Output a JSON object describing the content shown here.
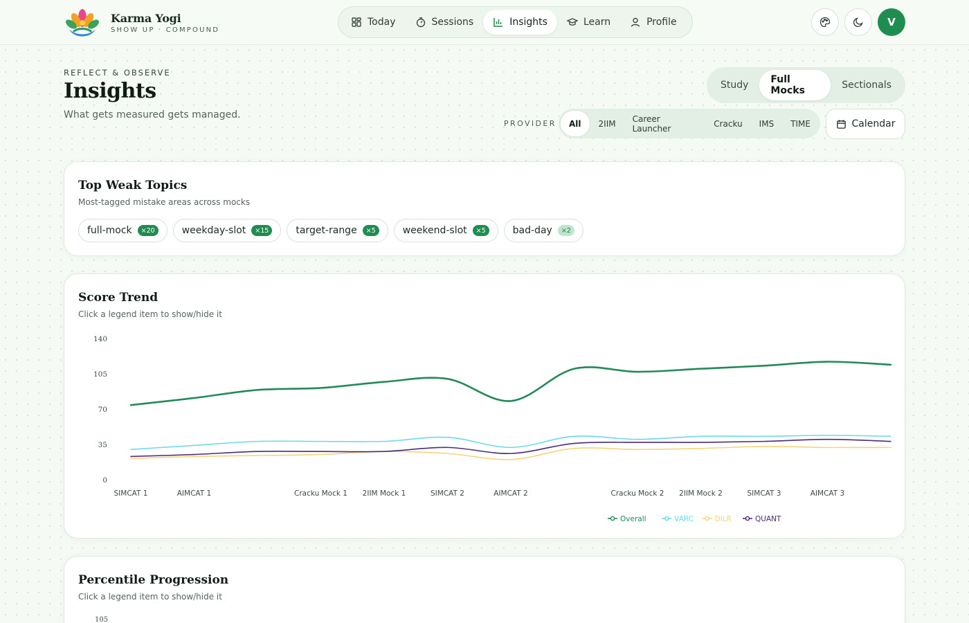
{
  "brand": {
    "name": "Karma Yogi",
    "tagline": "SHOW UP · COMPOUND"
  },
  "nav": {
    "items": [
      {
        "label": "Today",
        "icon": "grid-icon"
      },
      {
        "label": "Sessions",
        "icon": "timer-icon"
      },
      {
        "label": "Insights",
        "icon": "bar-chart-icon",
        "active": true
      },
      {
        "label": "Learn",
        "icon": "graduation-cap-icon"
      },
      {
        "label": "Profile",
        "icon": "user-icon"
      }
    ]
  },
  "header_actions": {
    "avatar_initial": "V"
  },
  "page": {
    "eyebrow": "REFLECT & OBSERVE",
    "title": "Insights",
    "subtitle": "What gets measured gets managed."
  },
  "mode_tabs": [
    {
      "label": "Study"
    },
    {
      "label": "Full Mocks",
      "active": true
    },
    {
      "label": "Sectionals"
    }
  ],
  "provider": {
    "label": "PROVIDER",
    "options": [
      {
        "label": "All",
        "active": true
      },
      {
        "label": "2IIM"
      },
      {
        "label": "Career Launcher"
      },
      {
        "label": "Cracku"
      },
      {
        "label": "IMS"
      },
      {
        "label": "TIME"
      }
    ]
  },
  "calendar_button": {
    "label": "Calendar"
  },
  "weak_topics": {
    "title": "Top Weak Topics",
    "subtitle": "Most-tagged mistake areas across mocks",
    "chips": [
      {
        "label": "full-mock",
        "count": "×20"
      },
      {
        "label": "weekday-slot",
        "count": "×15"
      },
      {
        "label": "target-range",
        "count": "×5"
      },
      {
        "label": "weekend-slot",
        "count": "×5"
      },
      {
        "label": "bad-day",
        "count": "×2",
        "muted": true
      }
    ]
  },
  "score_trend": {
    "title": "Score Trend",
    "subtitle": "Click a legend item to show/hide it"
  },
  "percentile": {
    "title": "Percentile Progression",
    "subtitle": "Click a legend item to show/hide it",
    "first_tick": "105"
  },
  "chart_data": {
    "type": "line",
    "ylim": [
      0,
      140
    ],
    "yticks": [
      0,
      35,
      70,
      105,
      140
    ],
    "x": [
      "SIMCAT 1",
      "AIMCAT 1",
      "",
      "Cracku Mock 1",
      "2IIM Mock 1",
      "SIMCAT 2",
      "AIMCAT 2",
      "",
      "Cracku Mock 2",
      "2IIM Mock 2",
      "SIMCAT 3",
      "AIMCAT 3",
      ""
    ],
    "series": [
      {
        "name": "Overall",
        "color": "#23895a",
        "values": [
          74,
          81,
          89,
          91,
          97,
          100,
          78,
          110,
          107,
          110,
          113,
          117,
          114
        ]
      },
      {
        "name": "VARC",
        "color": "#6ad9ec",
        "values": [
          30,
          34,
          38,
          38,
          38,
          42,
          32,
          43,
          40,
          43,
          43,
          44,
          43
        ]
      },
      {
        "name": "DILR",
        "color": "#f7d478",
        "values": [
          21,
          23,
          24,
          25,
          28,
          26,
          20,
          31,
          30,
          31,
          33,
          32,
          32
        ]
      },
      {
        "name": "QUANT",
        "color": "#4b2a78",
        "values": [
          23,
          25,
          28,
          28,
          28,
          32,
          26,
          36,
          37,
          37,
          38,
          40,
          38
        ]
      }
    ],
    "legend_position": "bottom-center",
    "grid": false
  }
}
